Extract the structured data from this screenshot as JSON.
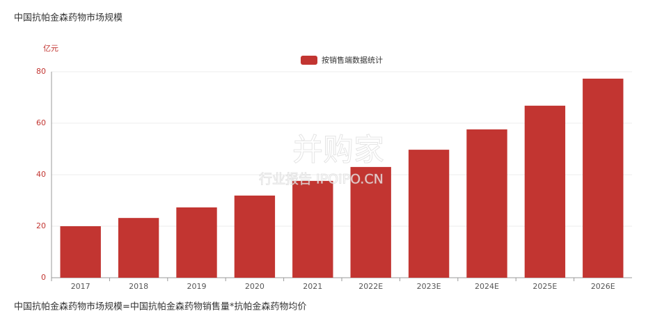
{
  "chart_data": {
    "type": "bar",
    "title": "中国抗帕金森药物市场规模",
    "y_axis_label": "亿元",
    "categories": [
      "2017",
      "2018",
      "2019",
      "2020",
      "2021",
      "2022E",
      "2023E",
      "2024E",
      "2025E",
      "2026E"
    ],
    "series": [
      {
        "name": "按销售端数据统计",
        "color": "#c23531",
        "values": [
          20,
          23.2,
          27.3,
          31.9,
          37.6,
          43,
          49.7,
          57.6,
          66.8,
          77.3
        ]
      }
    ],
    "ylim": [
      0,
      80
    ],
    "yticks": [
      0,
      20,
      40,
      60,
      80
    ],
    "grid": true,
    "watermark": {
      "logo": "并购家",
      "subtitle": "行业报告 IPOIPO.CN"
    },
    "footnote": "中国抗帕金森药物市场规模=中国抗帕金森药物销售量*抗帕金森药物均价"
  }
}
